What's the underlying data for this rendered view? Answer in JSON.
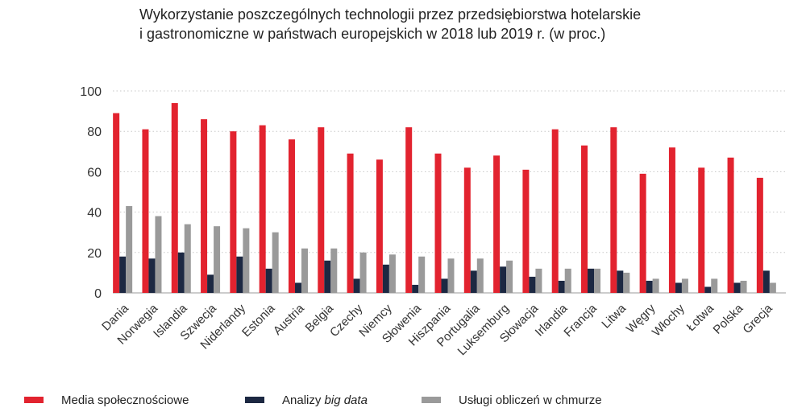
{
  "title": {
    "line1": "Wykorzystanie poszczególnych technologii przez przedsiębiorstwa hotelarskie",
    "line2": "i gastronomiczne w państwach europejskich w 2018 lub 2019 r. (w proc.)"
  },
  "legend": {
    "social_label": "Media społecznościowe",
    "bigdata_prefix": "Analizy ",
    "bigdata_italic": "big data",
    "cloud_label": "Usługi obliczeń w chmurze"
  },
  "chart_data": {
    "type": "bar",
    "title": "Wykorzystanie poszczególnych technologii przez przedsiębiorstwa hotelarskie i gastronomiczne w państwach europejskich w 2018 lub 2019 r. (w proc.)",
    "categories": [
      "Dania",
      "Norwegia",
      "Islandia",
      "Szwecja",
      "Niderlandy",
      "Estonia",
      "Austria",
      "Belgia",
      "Czechy",
      "Niemcy",
      "Słowenia",
      "Hiszpania",
      "Portugalia",
      "Luksemburg",
      "Słowacja",
      "Irlandia",
      "Francja",
      "Litwa",
      "Węgry",
      "Włochy",
      "Łotwa",
      "Polska",
      "Grecja"
    ],
    "series": [
      {
        "name": "Media społecznościowe",
        "color": "#e2232f",
        "values": [
          89,
          81,
          94,
          86,
          80,
          83,
          76,
          82,
          69,
          66,
          82,
          69,
          62,
          68,
          61,
          81,
          73,
          82,
          59,
          72,
          62,
          67,
          57
        ]
      },
      {
        "name": "Analizy big data",
        "color": "#1c2842",
        "values": [
          18,
          17,
          20,
          9,
          18,
          12,
          5,
          16,
          7,
          14,
          4,
          7,
          11,
          13,
          8,
          6,
          12,
          11,
          6,
          5,
          3,
          5,
          11
        ]
      },
      {
        "name": "Usługi obliczeń w chmurze",
        "color": "#9a9a9a",
        "values": [
          43,
          38,
          34,
          33,
          32,
          30,
          22,
          22,
          20,
          19,
          18,
          17,
          17,
          16,
          12,
          12,
          12,
          10,
          7,
          7,
          7,
          6,
          5
        ]
      }
    ],
    "ylim": [
      0,
      100
    ],
    "yticks": [
      0,
      20,
      40,
      60,
      80,
      100
    ],
    "grid": true,
    "legend_position": "bottom"
  }
}
